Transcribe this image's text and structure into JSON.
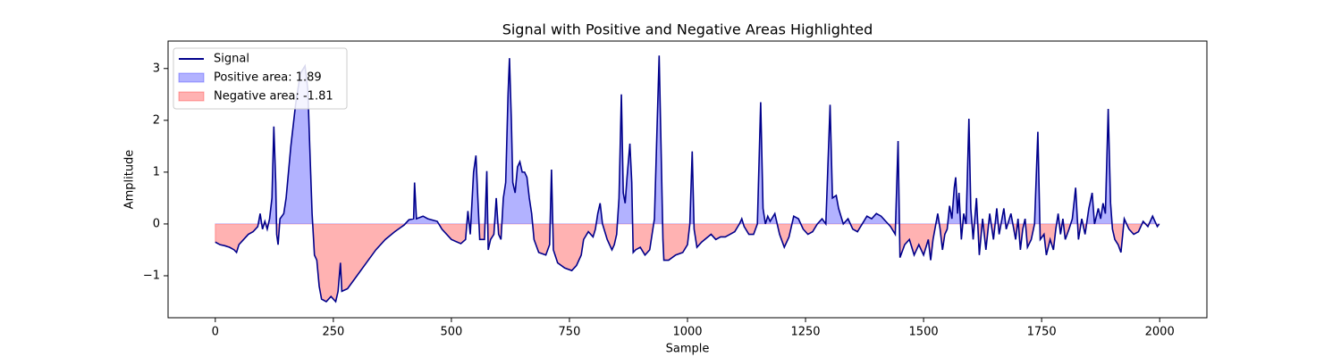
{
  "chart_data": {
    "type": "line",
    "title": "Signal with Positive and Negative Areas Highlighted",
    "xlabel": "Sample",
    "ylabel": "Amplitude",
    "xlim": [
      -100,
      2100
    ],
    "ylim": [
      -1.81,
      3.53
    ],
    "xticks": [
      0,
      250,
      500,
      750,
      1000,
      1250,
      1500,
      1750,
      2000
    ],
    "yticks": [
      {
        "value": -1,
        "label": "−1"
      },
      0,
      1,
      2,
      3
    ],
    "legend": "upper left",
    "x": [
      0,
      10,
      20,
      30,
      40,
      45,
      50,
      60,
      70,
      80,
      90,
      95,
      100,
      105,
      110,
      115,
      120,
      124,
      128,
      130,
      133,
      137,
      145,
      150,
      160,
      170,
      180,
      190,
      196,
      200,
      205,
      210,
      215,
      220,
      225,
      235,
      245,
      255,
      260,
      265,
      268,
      280,
      300,
      320,
      340,
      360,
      380,
      400,
      410,
      420,
      422,
      426,
      440,
      450,
      470,
      480,
      500,
      520,
      530,
      535,
      540,
      547,
      552,
      556,
      560,
      570,
      575,
      578,
      583,
      590,
      595,
      600,
      605,
      610,
      615,
      620,
      623,
      627,
      630,
      635,
      640,
      645,
      650,
      655,
      660,
      665,
      670,
      675,
      685,
      700,
      708,
      712,
      716,
      725,
      740,
      755,
      765,
      775,
      780,
      790,
      800,
      805,
      810,
      815,
      820,
      830,
      840,
      845,
      850,
      855,
      860,
      864,
      868,
      872,
      878,
      882,
      885,
      890,
      900,
      910,
      920,
      930,
      936,
      940,
      944,
      948,
      950,
      960,
      975,
      990,
      1000,
      1005,
      1010,
      1014,
      1020,
      1030,
      1050,
      1060,
      1070,
      1080,
      1090,
      1100,
      1110,
      1115,
      1120,
      1130,
      1140,
      1148,
      1155,
      1160,
      1165,
      1170,
      1175,
      1185,
      1195,
      1205,
      1215,
      1225,
      1235,
      1245,
      1255,
      1265,
      1275,
      1285,
      1293,
      1302,
      1307,
      1315,
      1320,
      1330,
      1340,
      1350,
      1360,
      1370,
      1380,
      1390,
      1400,
      1410,
      1420,
      1430,
      1440,
      1446,
      1450,
      1460,
      1470,
      1480,
      1490,
      1500,
      1510,
      1515,
      1520,
      1530,
      1535,
      1540,
      1545,
      1550,
      1555,
      1560,
      1565,
      1568,
      1572,
      1575,
      1580,
      1585,
      1590,
      1596,
      1600,
      1605,
      1612,
      1618,
      1625,
      1632,
      1640,
      1648,
      1655,
      1660,
      1670,
      1675,
      1685,
      1695,
      1700,
      1705,
      1710,
      1715,
      1720,
      1728,
      1735,
      1742,
      1747,
      1755,
      1760,
      1768,
      1775,
      1780,
      1785,
      1790,
      1795,
      1800,
      1808,
      1815,
      1822,
      1828,
      1835,
      1842,
      1850,
      1857,
      1862,
      1870,
      1875,
      1880,
      1885,
      1891,
      1896,
      1900,
      1905,
      1912,
      1918,
      1925,
      1935,
      1945,
      1955,
      1965,
      1975,
      1985,
      1990,
      1995,
      1999
    ],
    "series": [
      {
        "name": "Signal",
        "color": "#00008b",
        "values": [
          -0.35,
          -0.4,
          -0.42,
          -0.45,
          -0.5,
          -0.55,
          -0.4,
          -0.3,
          -0.2,
          -0.15,
          -0.05,
          0.2,
          -0.1,
          0.05,
          -0.1,
          0.1,
          0.5,
          1.88,
          0.8,
          -0.2,
          -0.4,
          0.1,
          0.2,
          0.5,
          1.5,
          2.3,
          2.9,
          3.05,
          2.6,
          1.5,
          0.2,
          -0.6,
          -0.7,
          -1.2,
          -1.45,
          -1.5,
          -1.4,
          -1.5,
          -1.3,
          -0.75,
          -1.3,
          -1.25,
          -1.0,
          -0.75,
          -0.5,
          -0.3,
          -0.15,
          -0.02,
          0.08,
          0.1,
          0.8,
          0.1,
          0.15,
          0.1,
          0.05,
          -0.1,
          -0.3,
          -0.38,
          -0.3,
          0.25,
          -0.2,
          1.0,
          1.32,
          0.5,
          -0.3,
          -0.3,
          1.02,
          -0.5,
          -0.3,
          -0.2,
          0.5,
          -0.2,
          -0.3,
          0.5,
          0.8,
          2.5,
          3.2,
          2.0,
          0.8,
          0.6,
          1.1,
          1.2,
          1.0,
          1.0,
          0.9,
          0.5,
          0.2,
          -0.3,
          -0.55,
          -0.6,
          -0.4,
          1.05,
          -0.5,
          -0.75,
          -0.85,
          -0.9,
          -0.8,
          -0.6,
          -0.3,
          -0.15,
          -0.25,
          -0.1,
          0.2,
          0.4,
          0.0,
          -0.3,
          -0.5,
          -0.4,
          -0.2,
          0.5,
          2.5,
          0.6,
          0.4,
          0.9,
          1.55,
          0.8,
          -0.55,
          -0.5,
          -0.45,
          -0.6,
          -0.5,
          0.1,
          2.0,
          3.25,
          1.5,
          -0.3,
          -0.7,
          -0.7,
          -0.6,
          -0.55,
          -0.4,
          0.0,
          1.4,
          -0.1,
          -0.45,
          -0.35,
          -0.2,
          -0.3,
          -0.25,
          -0.25,
          -0.2,
          -0.15,
          0.0,
          0.1,
          -0.05,
          -0.2,
          -0.2,
          0.0,
          2.35,
          0.3,
          0.0,
          0.15,
          0.05,
          0.2,
          -0.2,
          -0.45,
          -0.25,
          0.15,
          0.1,
          -0.1,
          -0.2,
          -0.15,
          0.0,
          0.1,
          0.0,
          2.3,
          0.5,
          0.55,
          0.3,
          0.0,
          0.1,
          -0.1,
          -0.15,
          0.0,
          0.15,
          0.1,
          0.2,
          0.15,
          0.05,
          -0.05,
          -0.2,
          1.6,
          -0.65,
          -0.4,
          -0.3,
          -0.6,
          -0.4,
          -0.6,
          -0.3,
          -0.7,
          -0.3,
          0.2,
          -0.1,
          -0.5,
          -0.2,
          -0.1,
          0.35,
          0.1,
          0.7,
          0.9,
          0.2,
          0.6,
          -0.3,
          0.2,
          0.0,
          2.03,
          0.3,
          -0.3,
          0.5,
          -0.6,
          0.1,
          -0.5,
          0.2,
          -0.3,
          0.3,
          -0.2,
          0.3,
          -0.1,
          0.2,
          -0.3,
          0.1,
          -0.5,
          -0.1,
          0.1,
          -0.45,
          -0.3,
          0.0,
          1.78,
          -0.3,
          -0.2,
          -0.6,
          -0.3,
          -0.5,
          -0.1,
          0.2,
          -0.2,
          0.1,
          -0.3,
          -0.1,
          0.1,
          0.7,
          -0.3,
          0.1,
          -0.2,
          0.3,
          0.6,
          0.0,
          0.3,
          0.1,
          0.4,
          0.2,
          2.22,
          0.4,
          -0.1,
          -0.3,
          -0.4,
          -0.55,
          0.1,
          -0.1,
          -0.2,
          -0.15,
          0.05,
          -0.05,
          0.15,
          0.05,
          -0.05,
          0.0
        ]
      }
    ],
    "fills": [
      {
        "name": "Positive area: 1.89",
        "color": "#0000ff"
      },
      {
        "name": "Negative area: -1.81",
        "color": "#ff0000"
      }
    ]
  }
}
